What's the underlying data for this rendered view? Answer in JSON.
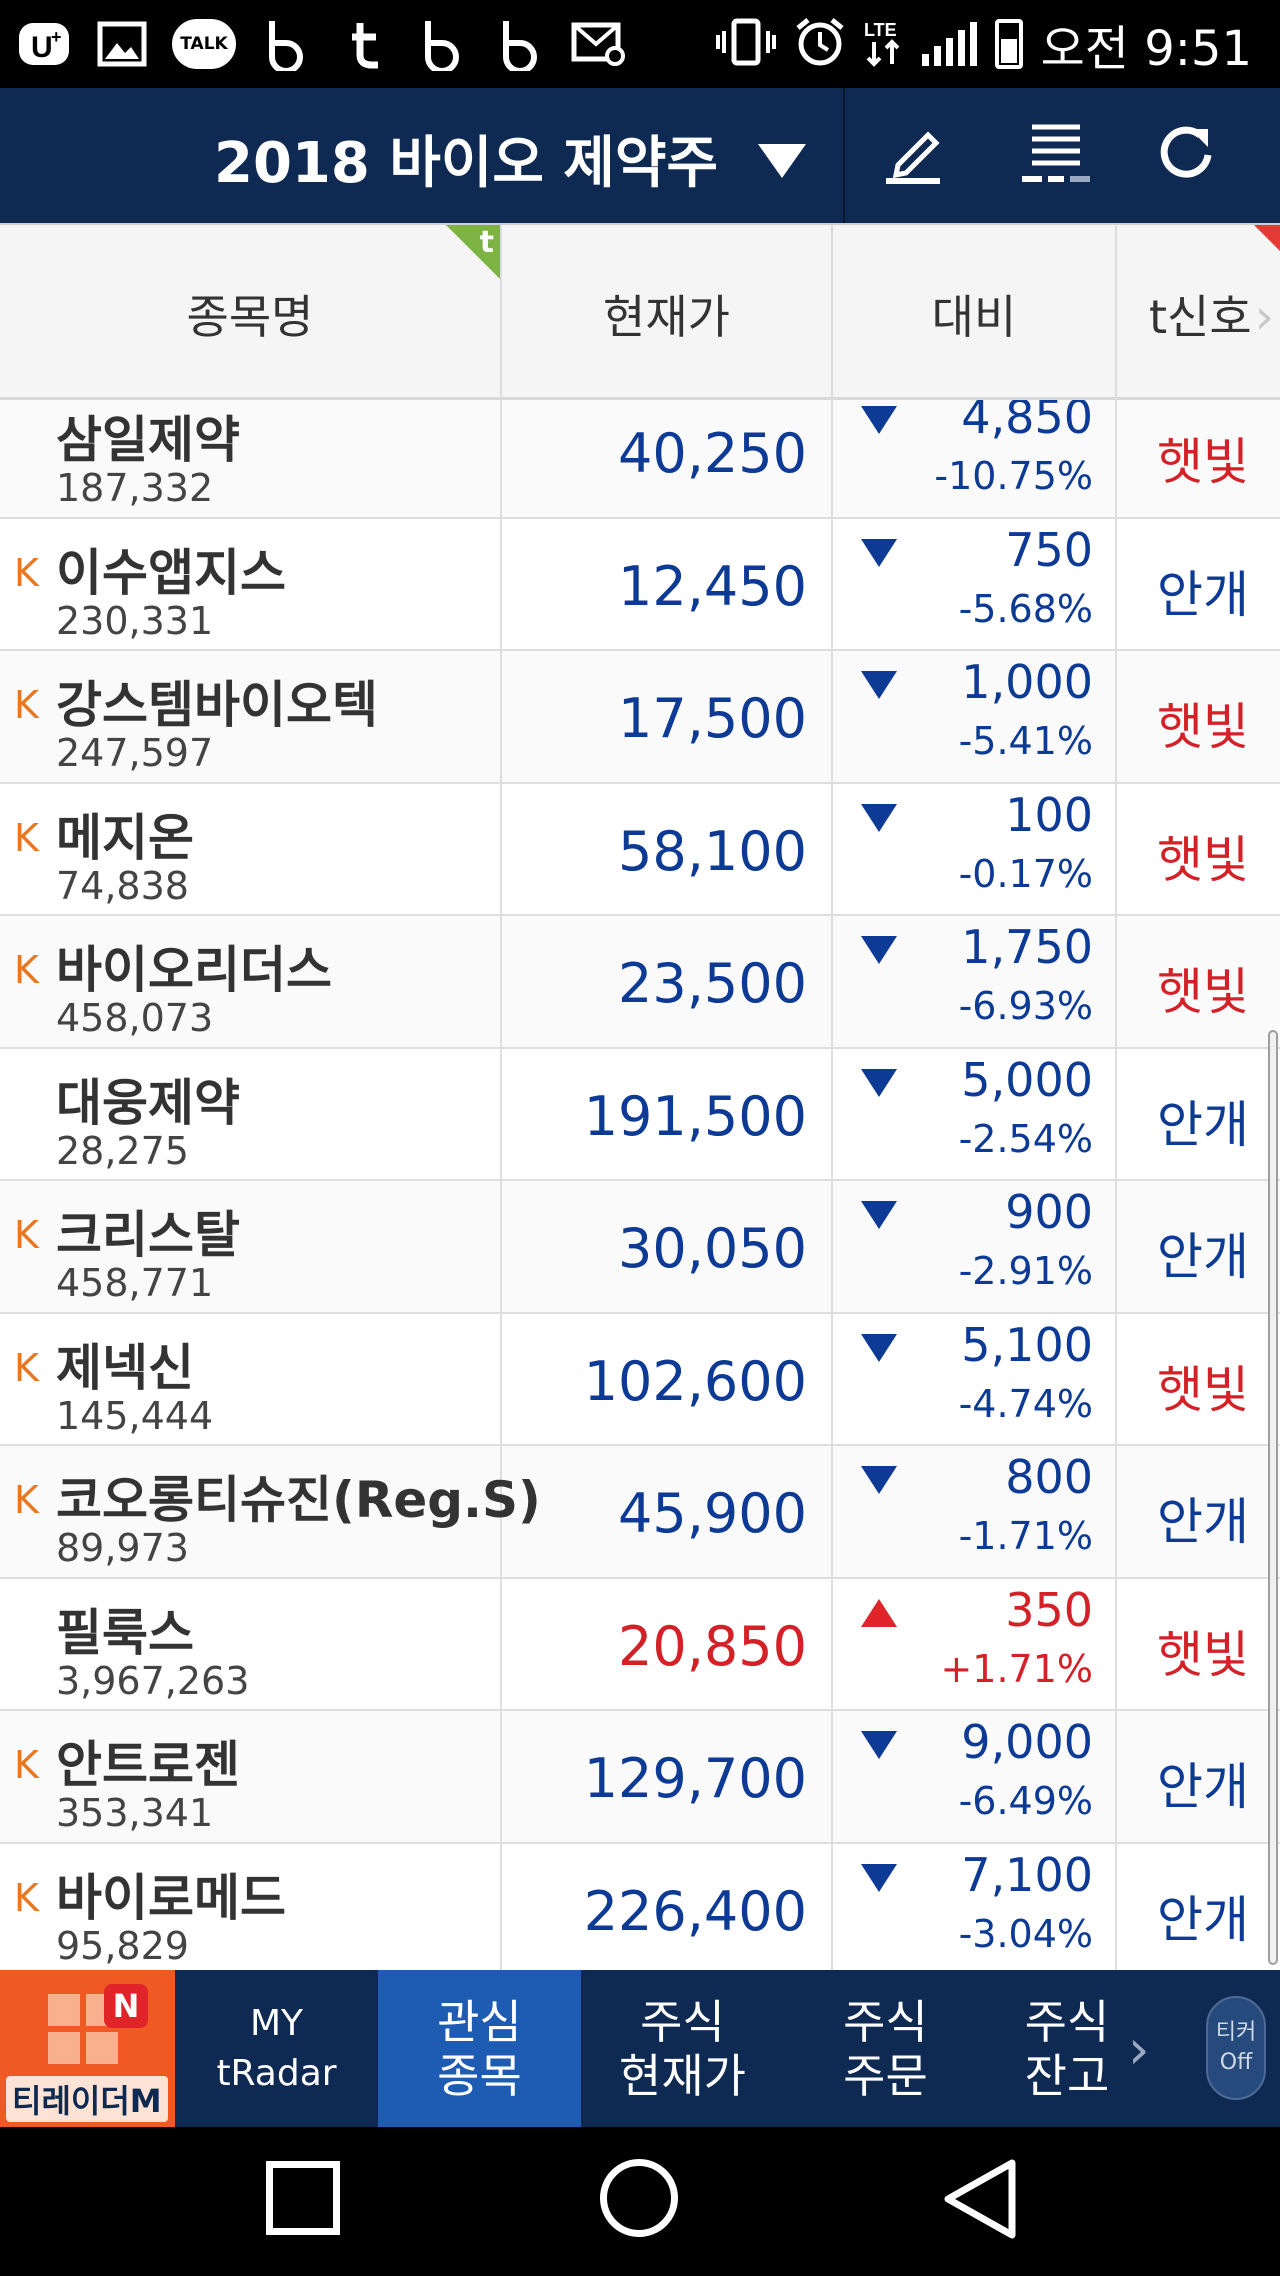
{
  "status_bar": {
    "time": "오전 9:51",
    "talk_label": "TALK",
    "icons": [
      "u-plus-icon",
      "gallery-icon",
      "kakaotalk-icon",
      "b-app-icon",
      "tumblr-icon",
      "b-app-icon",
      "b-app-icon",
      "mail-icon",
      "vibrate-icon",
      "alarm-icon",
      "lte-icon",
      "signal-icon",
      "battery-icon"
    ]
  },
  "title_bar": {
    "title": "2018 바이오 제약주",
    "buttons": [
      "edit-icon",
      "list-icon",
      "refresh-icon"
    ]
  },
  "table": {
    "headers": {
      "name": "종목명",
      "price": "현재가",
      "diff": "대비",
      "signal": "t신호"
    },
    "corner_badge": "t",
    "rows": [
      {
        "k": "",
        "name": "삼일제약",
        "volume": "187,332",
        "price": "40,250",
        "direction": "down",
        "diff": "4,850",
        "pct": "-10.75%",
        "signal": "햇빛",
        "signal_color": "red"
      },
      {
        "k": "K",
        "name": "이수앱지스",
        "volume": "230,331",
        "price": "12,450",
        "direction": "down",
        "diff": "750",
        "pct": "-5.68%",
        "signal": "안개",
        "signal_color": "blue"
      },
      {
        "k": "K",
        "name": "강스템바이오텍",
        "volume": "247,597",
        "price": "17,500",
        "direction": "down",
        "diff": "1,000",
        "pct": "-5.41%",
        "signal": "햇빛",
        "signal_color": "red"
      },
      {
        "k": "K",
        "name": "메지온",
        "volume": "74,838",
        "price": "58,100",
        "direction": "down",
        "diff": "100",
        "pct": "-0.17%",
        "signal": "햇빛",
        "signal_color": "red"
      },
      {
        "k": "K",
        "name": "바이오리더스",
        "volume": "458,073",
        "price": "23,500",
        "direction": "down",
        "diff": "1,750",
        "pct": "-6.93%",
        "signal": "햇빛",
        "signal_color": "red"
      },
      {
        "k": "",
        "name": "대웅제약",
        "volume": "28,275",
        "price": "191,500",
        "direction": "down",
        "diff": "5,000",
        "pct": "-2.54%",
        "signal": "안개",
        "signal_color": "blue"
      },
      {
        "k": "K",
        "name": "크리스탈",
        "volume": "458,771",
        "price": "30,050",
        "direction": "down",
        "diff": "900",
        "pct": "-2.91%",
        "signal": "안개",
        "signal_color": "blue"
      },
      {
        "k": "K",
        "name": "제넥신",
        "volume": "145,444",
        "price": "102,600",
        "direction": "down",
        "diff": "5,100",
        "pct": "-4.74%",
        "signal": "햇빛",
        "signal_color": "red"
      },
      {
        "k": "K",
        "name": "코오롱티슈진(Reg.S)",
        "volume": "89,973",
        "price": "45,900",
        "direction": "down",
        "diff": "800",
        "pct": "-1.71%",
        "signal": "안개",
        "signal_color": "blue"
      },
      {
        "k": "",
        "name": "필룩스",
        "volume": "3,967,263",
        "price": "20,850",
        "direction": "up",
        "diff": "350",
        "pct": "+1.71%",
        "signal": "햇빛",
        "signal_color": "red"
      },
      {
        "k": "K",
        "name": "안트로젠",
        "volume": "353,341",
        "price": "129,700",
        "direction": "down",
        "diff": "9,000",
        "pct": "-6.49%",
        "signal": "안개",
        "signal_color": "blue"
      },
      {
        "k": "K",
        "name": "바이로메드",
        "volume": "95,829",
        "price": "226,400",
        "direction": "down",
        "diff": "7,100",
        "pct": "-3.04%",
        "signal": "안개",
        "signal_color": "blue"
      }
    ]
  },
  "bottom_nav": {
    "logo_badge": "N",
    "logo_text": "티레이더M",
    "items": [
      {
        "line1": "MY",
        "line2": "tRadar",
        "active": false
      },
      {
        "line1": "관심",
        "line2": "종목",
        "active": true
      },
      {
        "line1": "주식",
        "line2": "현재가",
        "active": false
      },
      {
        "line1": "주식",
        "line2": "주문",
        "active": false
      },
      {
        "line1": "주식",
        "line2": "잔고",
        "active": false
      }
    ],
    "ticker_line1": "티커",
    "ticker_line2": "Off"
  },
  "colors": {
    "navy": "#0f2a52",
    "active_tab": "#1e5bb3",
    "down_blue": "#0c3a94",
    "up_red": "#d42128",
    "k_orange": "#e87722",
    "logo_orange": "#ef5a24"
  }
}
